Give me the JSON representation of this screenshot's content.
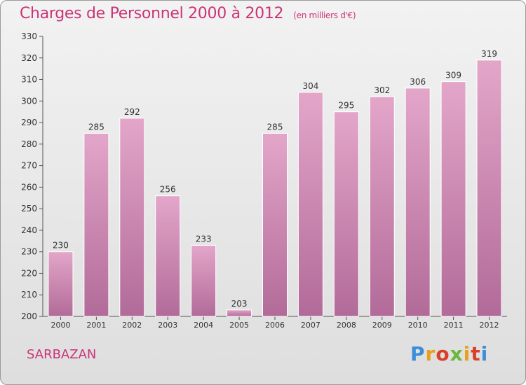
{
  "title": "Charges de Personnel 2000 à 2012",
  "subtitle": "(en milliers d'€)",
  "town": "SARBAZAN",
  "logo_text": "Proxiti",
  "colors": {
    "bar": "#d48fb6",
    "bar_dark": "#b36a98",
    "accent": "#cc3377"
  },
  "chart_data": {
    "type": "bar",
    "title": "Charges de Personnel 2000 à 2012",
    "subtitle": "(en milliers d'€)",
    "categories": [
      "2000",
      "2001",
      "2002",
      "2003",
      "2004",
      "2005",
      "2006",
      "2007",
      "2008",
      "2009",
      "2010",
      "2011",
      "2012"
    ],
    "values": [
      230,
      285,
      292,
      256,
      233,
      203,
      285,
      304,
      295,
      302,
      306,
      309,
      319
    ],
    "ylim": [
      200,
      330
    ],
    "yticks": [
      200,
      210,
      220,
      230,
      240,
      250,
      260,
      270,
      280,
      290,
      300,
      310,
      320,
      330
    ],
    "grid": false,
    "legend": "none"
  }
}
